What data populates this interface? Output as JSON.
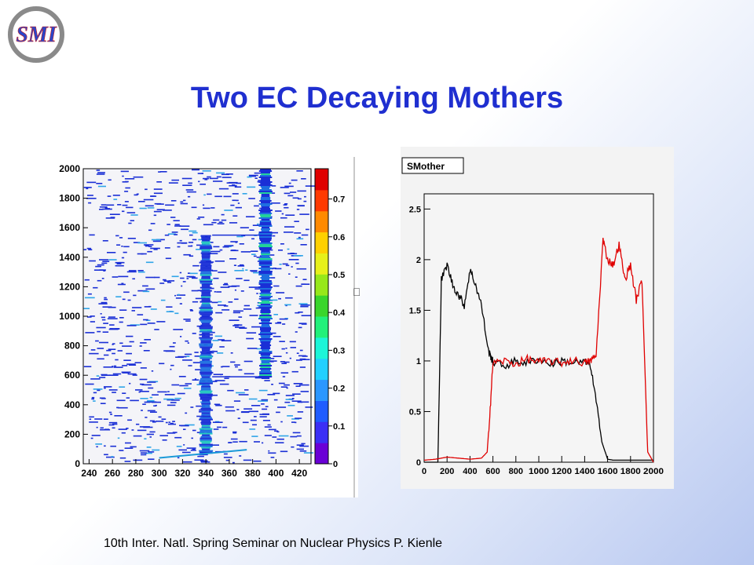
{
  "slide": {
    "title": "Two EC Decaying Mothers",
    "footer": "10th Inter. Natl. Spring Seminar on Nuclear Physics   P. Kienle",
    "logo_text": "SMI",
    "stray_glyph": "⎕"
  },
  "colors": {
    "title": "#1f2fd0",
    "hit": "#1a2fd6",
    "red_curve": "#e00000",
    "black_curve": "#000000"
  },
  "chart_data": [
    {
      "type": "heatmap",
      "title": "",
      "xlabel": "",
      "ylabel": "",
      "xlim": [
        235,
        430
      ],
      "ylim": [
        0,
        2000
      ],
      "x_ticks": [
        "240",
        "260",
        "280",
        "300",
        "320",
        "340",
        "360",
        "380",
        "400",
        "420"
      ],
      "y_ticks": [
        "0",
        "200",
        "400",
        "600",
        "800",
        "1000",
        "1200",
        "1400",
        "1600",
        "1800",
        "2000"
      ],
      "colorbar_range": [
        0,
        0.78
      ],
      "colorbar_ticks": [
        "0",
        "0.1",
        "0.2",
        "0.3",
        "0.4",
        "0.5",
        "0.6",
        "0.7"
      ],
      "traces": [
        {
          "x": 340,
          "t_start": 80,
          "t_end": 1550,
          "intensity": 0.3
        },
        {
          "x": 391,
          "t_start": 580,
          "t_end": 2000,
          "intensity": 0.5
        }
      ],
      "transitions": [
        {
          "from_x": 340,
          "to_x": 391,
          "t": 1550
        },
        {
          "from_x": 340,
          "to_x": 391,
          "t": 590
        }
      ],
      "background": "sparse random hits",
      "colorbar_colors": [
        "#6a00d6",
        "#3b2ff5",
        "#1f5cff",
        "#2b97ff",
        "#22d0ff",
        "#1cf5d8",
        "#22f07a",
        "#3ad62c",
        "#97e81a",
        "#e7f01a",
        "#ffd000",
        "#ff8a00",
        "#ff3a00",
        "#e00000"
      ]
    },
    {
      "type": "line",
      "title": "SMother",
      "xlabel": "",
      "ylabel": "",
      "xlim": [
        0,
        2000
      ],
      "ylim": [
        0,
        2.65
      ],
      "x_ticks": [
        "0",
        "200",
        "400",
        "600",
        "800",
        "1000",
        "1200",
        "1400",
        "1600",
        "1800",
        "2000"
      ],
      "y_ticks": [
        "0",
        "0.5",
        "1",
        "1.5",
        "2",
        "2.5"
      ],
      "series": [
        {
          "color": "#000000",
          "x": [
            0,
            120,
            150,
            200,
            250,
            300,
            350,
            400,
            450,
            500,
            560,
            590,
            600,
            700,
            800,
            900,
            1000,
            1100,
            1200,
            1300,
            1400,
            1450,
            1500,
            1550,
            1600,
            1650,
            1700,
            1800,
            1900,
            2000
          ],
          "y": [
            0,
            0,
            1.8,
            1.95,
            1.75,
            1.65,
            1.55,
            1.9,
            1.75,
            1.55,
            1.1,
            1.02,
            0.99,
            0.95,
            1.0,
            0.98,
            1.02,
            0.97,
            1.0,
            0.98,
            0.99,
            0.96,
            0.6,
            0.2,
            0.03,
            0.02,
            0.02,
            0.02,
            0.02,
            0.02
          ]
        },
        {
          "color": "#e00000",
          "x": [
            0,
            100,
            200,
            300,
            400,
            500,
            550,
            580,
            600,
            700,
            800,
            900,
            1000,
            1100,
            1200,
            1300,
            1400,
            1450,
            1500,
            1560,
            1600,
            1650,
            1700,
            1750,
            1800,
            1850,
            1900,
            1950,
            2000
          ],
          "y": [
            0.02,
            0.03,
            0.05,
            0.04,
            0.03,
            0.04,
            0.1,
            0.6,
            0.98,
            1.0,
            0.97,
            1.02,
            0.99,
            1.0,
            0.98,
            1.01,
            0.98,
            1.0,
            1.05,
            2.2,
            2.0,
            1.95,
            2.15,
            1.8,
            1.95,
            1.6,
            1.8,
            0.1,
            0
          ]
        }
      ]
    }
  ]
}
